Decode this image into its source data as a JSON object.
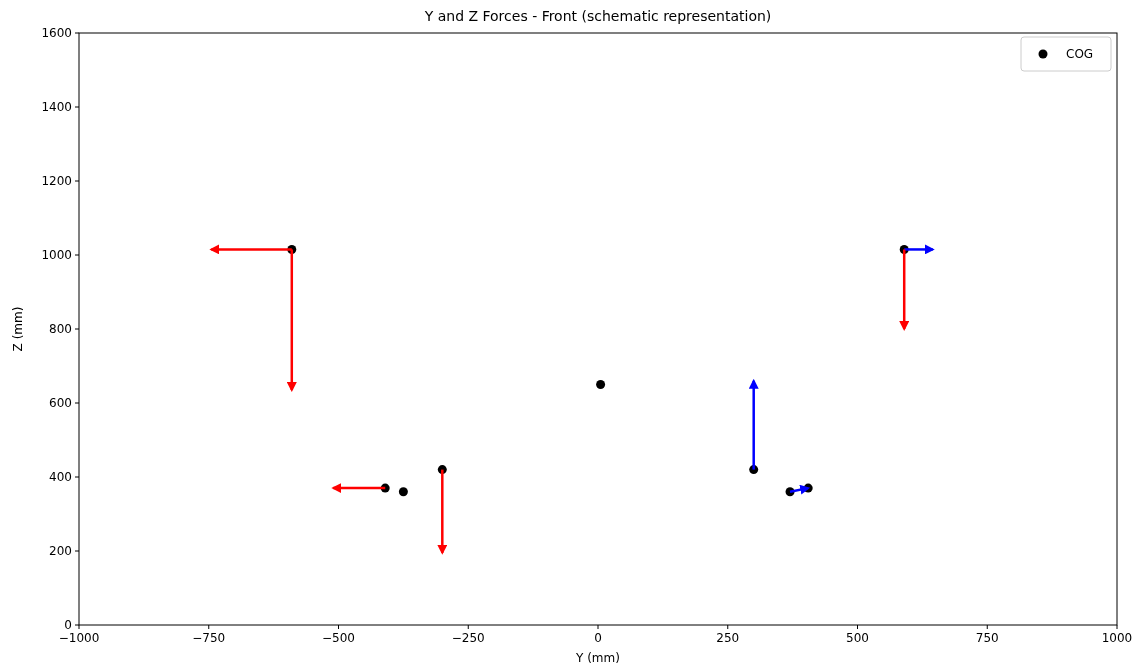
{
  "chart_data": {
    "type": "scatter",
    "title": "Y and Z Forces - Front (schematic representation)",
    "xlabel": "Y (mm)",
    "ylabel": "Z (mm)",
    "xlim": [
      -1000,
      1000
    ],
    "xticks": [
      -1000,
      -750,
      -500,
      -250,
      0,
      250,
      500,
      750,
      1000
    ],
    "ylim": [
      0,
      1600
    ],
    "yticks": [
      0,
      200,
      400,
      600,
      800,
      1000,
      1200,
      1400,
      1600
    ],
    "grid": false,
    "legend": "top right",
    "marker": "circle",
    "series": [
      {
        "color": "#000000",
        "x": [
          -590,
          -410,
          -375,
          -300,
          300,
          370,
          405,
          590
        ],
        "values": [
          1015,
          370,
          360,
          420,
          420,
          360,
          370,
          1015
        ]
      },
      {
        "name": "COG",
        "color": "#000000",
        "x": [
          5
        ],
        "values": [
          650
        ]
      },
      {
        "type": "line",
        "marker": "none",
        "color": "#ff0000",
        "x": [
          -590,
          -745
        ],
        "values": [
          1015,
          1015
        ]
      },
      {
        "type": "line",
        "marker": "none",
        "color": "#ff0000",
        "x": [
          -590,
          -590
        ],
        "values": [
          1015,
          635
        ]
      },
      {
        "type": "line",
        "marker": "none",
        "color": "#ff0000",
        "x": [
          -410,
          -510
        ],
        "values": [
          370,
          370
        ]
      },
      {
        "type": "line",
        "marker": "none",
        "color": "#ff0000",
        "x": [
          -300,
          -300
        ],
        "values": [
          420,
          195
        ]
      },
      {
        "type": "line",
        "marker": "none",
        "color": "#0000ff",
        "x": [
          300,
          300
        ],
        "values": [
          420,
          660
        ]
      },
      {
        "type": "line",
        "marker": "none",
        "color": "#0000ff",
        "x": [
          370,
          405
        ],
        "values": [
          360,
          370
        ]
      },
      {
        "type": "line",
        "marker": "none",
        "color": "#0000ff",
        "x": [
          590,
          645
        ],
        "values": [
          1015,
          1015
        ]
      },
      {
        "type": "line",
        "marker": "none",
        "color": "#ff0000",
        "x": [
          590,
          590
        ],
        "values": [
          1015,
          800
        ]
      }
    ]
  }
}
